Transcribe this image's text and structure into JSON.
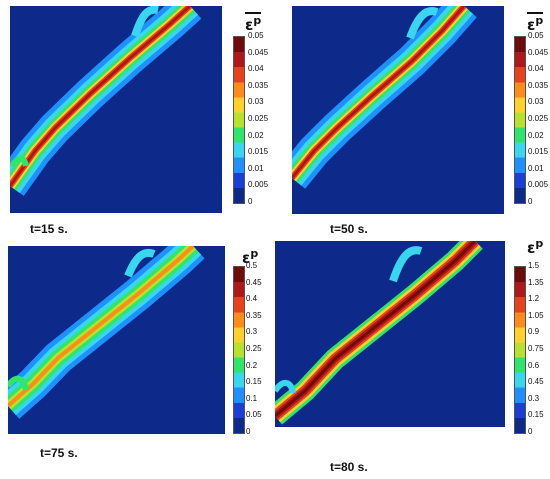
{
  "colormap": [
    "#0d2a8a",
    "#1a3ed6",
    "#1e90ff",
    "#39d6f0",
    "#2ee66b",
    "#b6e22c",
    "#ffd12a",
    "#ff8c1a",
    "#e8421c",
    "#b0171a",
    "#6e0b0b"
  ],
  "panels": [
    {
      "id": "p1",
      "time_label": "t=15 s.",
      "cb_title": "ε",
      "cb_sup": "p",
      "overline": true,
      "ticks": [
        "0.05",
        "0.045",
        "0.04",
        "0.035",
        "0.03",
        "0.025",
        "0.02",
        "0.015",
        "0.01",
        "0.005",
        "0"
      ]
    },
    {
      "id": "p2",
      "time_label": "t=50 s.",
      "cb_title": "ε",
      "cb_sup": "p",
      "overline": true,
      "ticks": [
        "0.05",
        "0.045",
        "0.04",
        "0.035",
        "0.03",
        "0.025",
        "0.02",
        "0.015",
        "0.01",
        "0.005",
        "0"
      ]
    },
    {
      "id": "p3",
      "time_label": "t=75 s.",
      "cb_title": "ε",
      "cb_sup": "p",
      "overline": false,
      "ticks": [
        "0.5",
        "0.45",
        "0.4",
        "0.35",
        "0.3",
        "0.25",
        "0.2",
        "0.15",
        "0.1",
        "0.05",
        "0"
      ]
    },
    {
      "id": "p4",
      "time_label": "t=80 s.",
      "cb_title": "ε",
      "cb_sup": "p",
      "overline": false,
      "ticks": [
        "1.5",
        "1.35",
        "1.2",
        "1.05",
        "0.9",
        "0.75",
        "0.6",
        "0.45",
        "0.3",
        "0.15",
        "0"
      ]
    }
  ]
}
